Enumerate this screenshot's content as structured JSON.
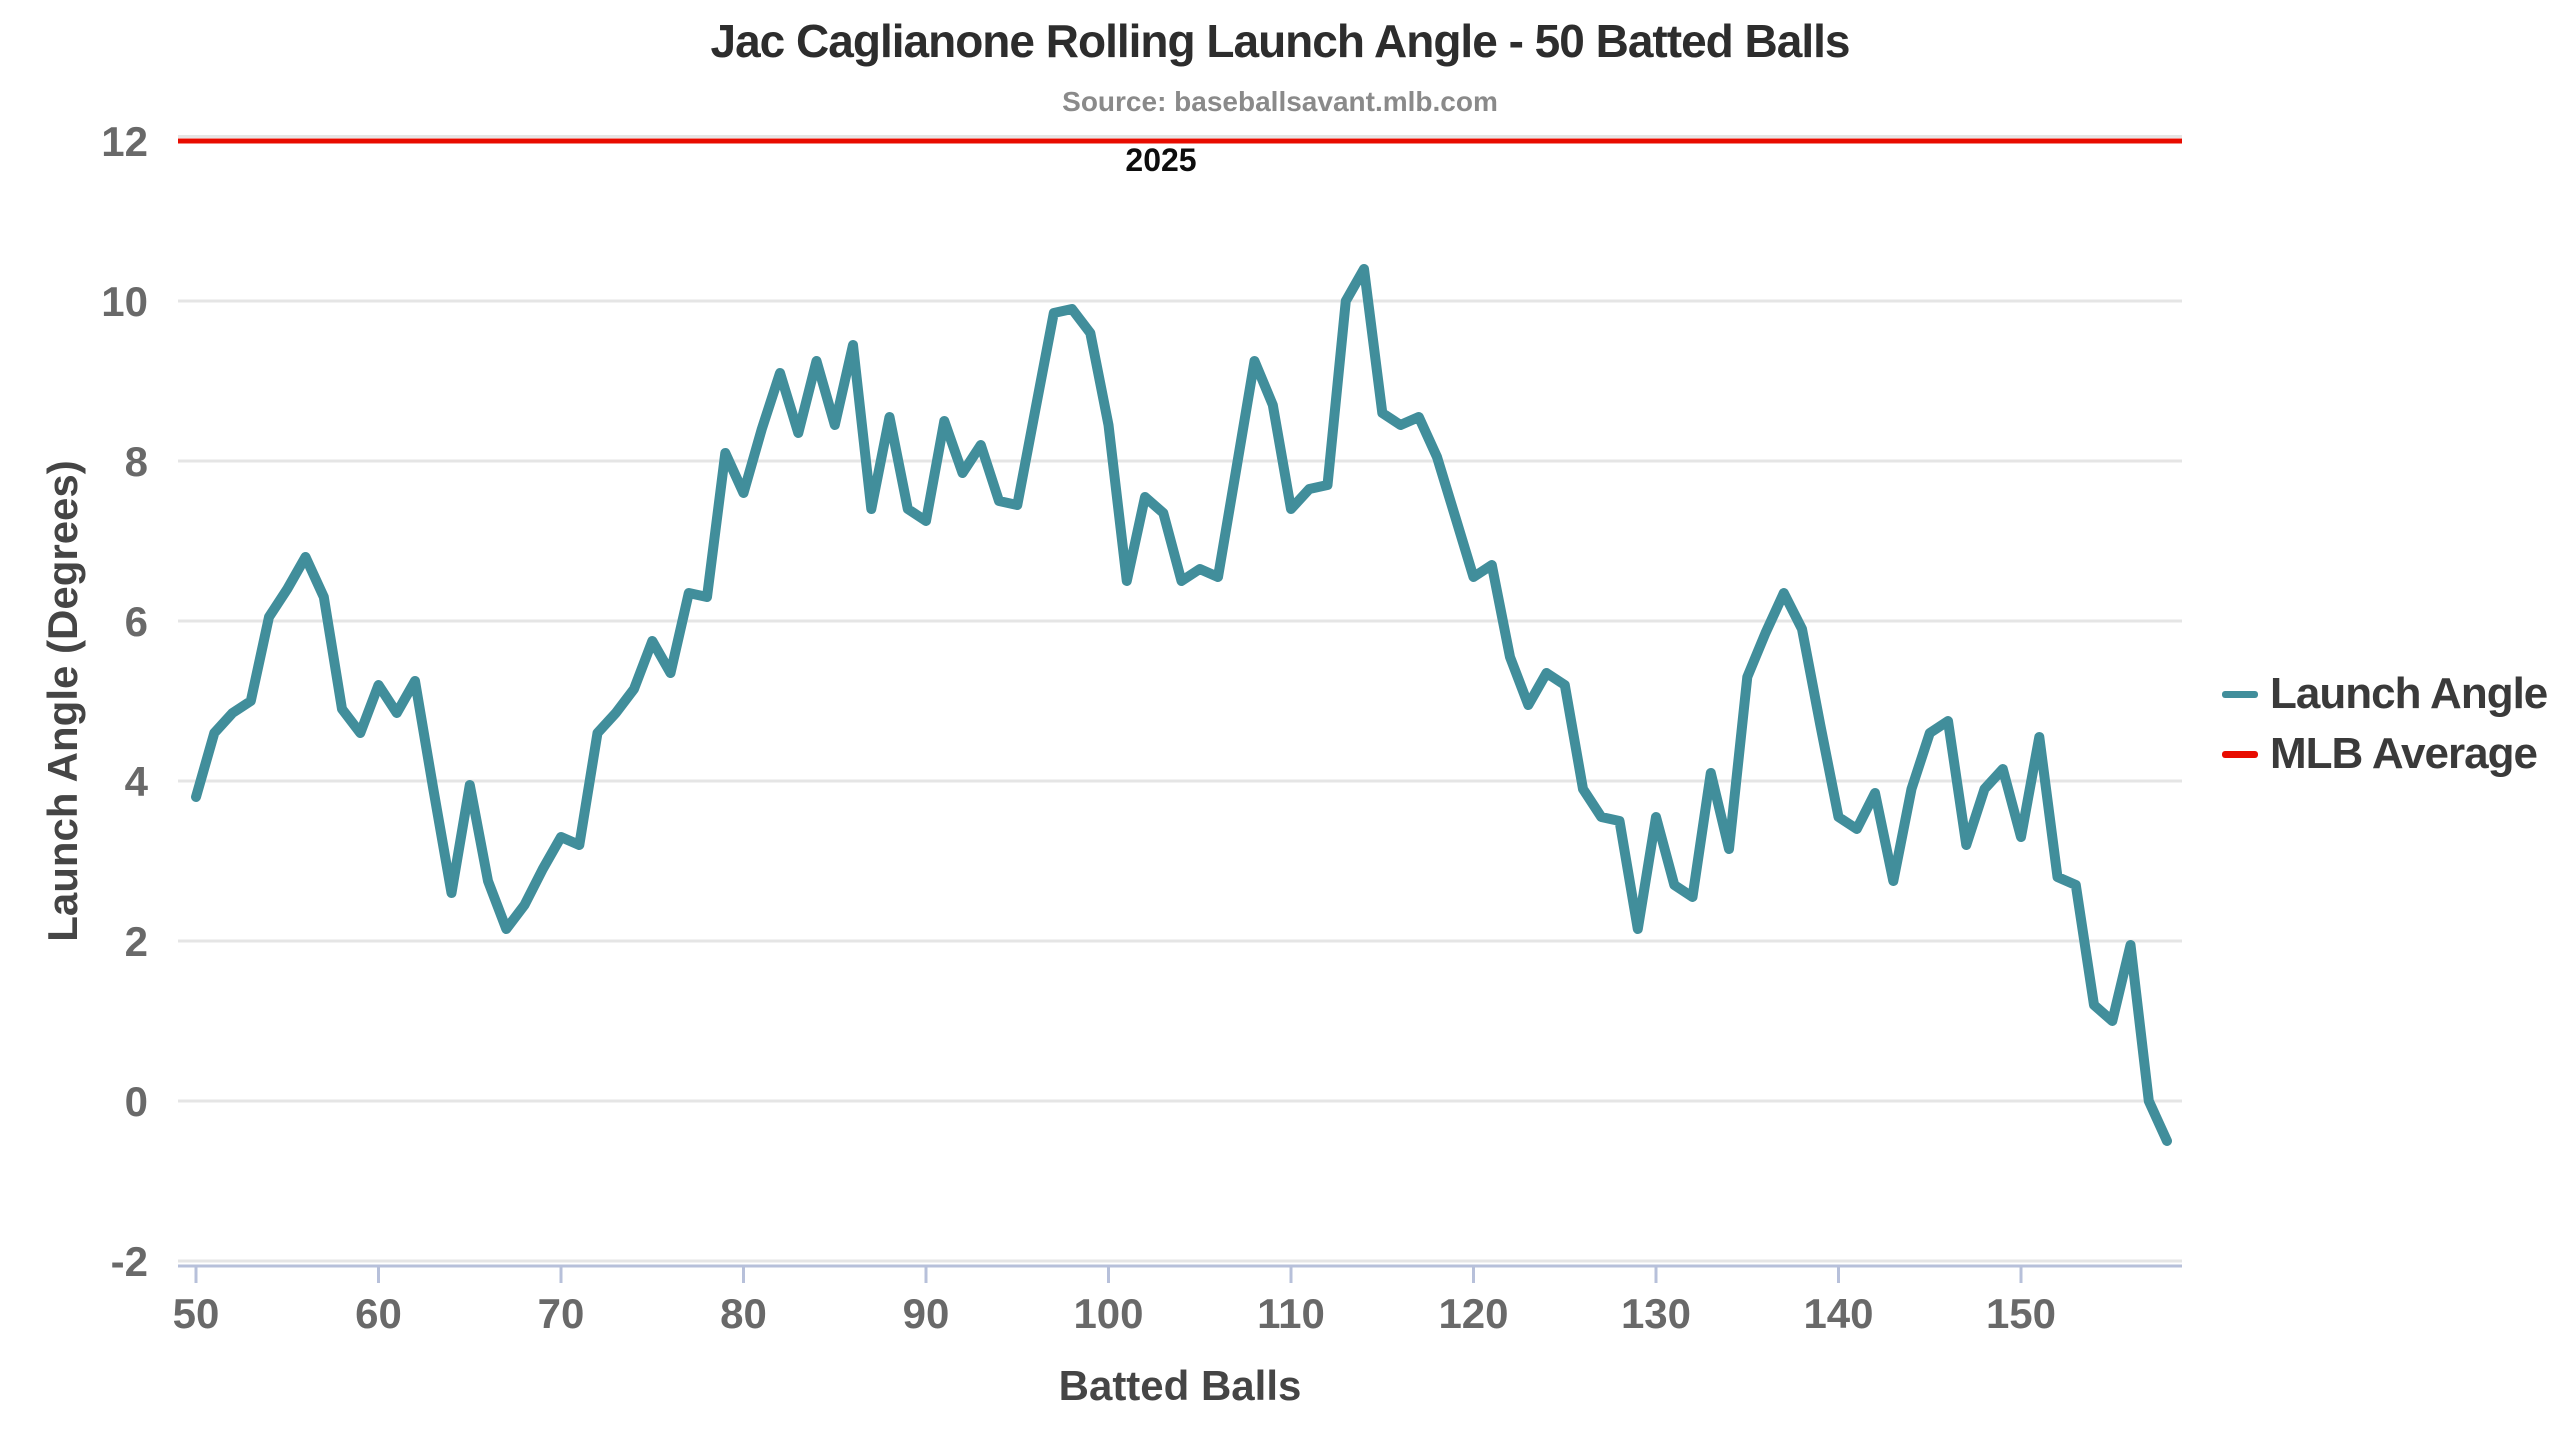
{
  "header": {
    "title": "Jac Caglianone Rolling Launch Angle - 50 Batted Balls",
    "source": "Source: baseballsavant.mlb.com",
    "season": "2025"
  },
  "axes": {
    "y_title": "Launch Angle (Degrees)",
    "x_title": "Batted Balls",
    "y_ticks": [
      12,
      10,
      8,
      6,
      4,
      2,
      0,
      -2
    ],
    "x_ticks": [
      50,
      60,
      70,
      80,
      90,
      100,
      110,
      120,
      130,
      140,
      150
    ]
  },
  "legend": [
    {
      "label": "Launch Angle",
      "color": "#418e9b"
    },
    {
      "label": "MLB Average",
      "color": "#e80c00"
    }
  ],
  "colors": {
    "line": "#418e9b",
    "mlb_average": "#e80c00",
    "gridline": "#e5e5e5",
    "axis": "#b7c0da",
    "tick_label": "#696969"
  },
  "chart_data": {
    "type": "line",
    "title": "Jac Caglianone Rolling Launch Angle - 50 Batted Balls",
    "subtitle": "Source: baseballsavant.mlb.com",
    "annotation": "2025",
    "xlabel": "Batted Balls",
    "ylabel": "Launch Angle (Degrees)",
    "xlim": [
      50,
      158
    ],
    "ylim": [
      -2,
      12
    ],
    "grid": true,
    "legend_position": "right",
    "x": [
      50,
      51,
      52,
      53,
      54,
      55,
      56,
      57,
      58,
      59,
      60,
      61,
      62,
      63,
      64,
      65,
      66,
      67,
      68,
      69,
      70,
      71,
      72,
      73,
      74,
      75,
      76,
      77,
      78,
      79,
      80,
      81,
      82,
      83,
      84,
      85,
      86,
      87,
      88,
      89,
      90,
      91,
      92,
      93,
      94,
      95,
      96,
      97,
      98,
      99,
      100,
      101,
      102,
      103,
      104,
      105,
      106,
      107,
      108,
      109,
      110,
      111,
      112,
      113,
      114,
      115,
      116,
      117,
      118,
      119,
      120,
      121,
      122,
      123,
      124,
      125,
      126,
      127,
      128,
      129,
      130,
      131,
      132,
      133,
      134,
      135,
      136,
      137,
      138,
      139,
      140,
      141,
      142,
      143,
      144,
      145,
      146,
      147,
      148,
      149,
      150,
      151,
      152,
      153,
      154,
      155,
      156,
      157,
      158
    ],
    "series": [
      {
        "name": "Launch Angle",
        "type": "line",
        "color": "#418e9b",
        "values": [
          3.8,
          4.6,
          4.85,
          5.0,
          6.05,
          6.4,
          6.8,
          6.3,
          4.9,
          4.6,
          5.2,
          4.85,
          5.25,
          3.9,
          2.6,
          3.95,
          2.75,
          2.15,
          2.45,
          2.9,
          3.3,
          3.2,
          4.6,
          4.85,
          5.15,
          5.75,
          5.35,
          6.35,
          6.3,
          8.1,
          7.6,
          8.4,
          9.1,
          8.35,
          9.25,
          8.45,
          9.45,
          7.4,
          8.55,
          7.4,
          7.25,
          8.5,
          7.85,
          8.2,
          7.5,
          7.45,
          8.65,
          9.85,
          9.9,
          9.6,
          8.45,
          6.5,
          7.55,
          7.35,
          6.5,
          6.65,
          6.55,
          7.9,
          9.25,
          8.7,
          7.4,
          7.65,
          7.7,
          10.0,
          10.4,
          8.6,
          8.45,
          8.55,
          8.05,
          7.3,
          6.55,
          6.7,
          5.55,
          4.95,
          5.35,
          5.2,
          3.9,
          3.55,
          3.5,
          2.15,
          3.55,
          2.7,
          2.55,
          4.1,
          3.15,
          5.3,
          5.85,
          6.35,
          5.9,
          4.7,
          3.55,
          3.4,
          3.85,
          2.75,
          3.9,
          4.6,
          4.75,
          3.2,
          3.9,
          4.15,
          3.3,
          4.55,
          2.8,
          2.7,
          1.2,
          1.0,
          1.95,
          0.0,
          -0.5
        ]
      },
      {
        "name": "MLB Average",
        "type": "hline",
        "color": "#e80c00",
        "value": 12
      }
    ]
  }
}
